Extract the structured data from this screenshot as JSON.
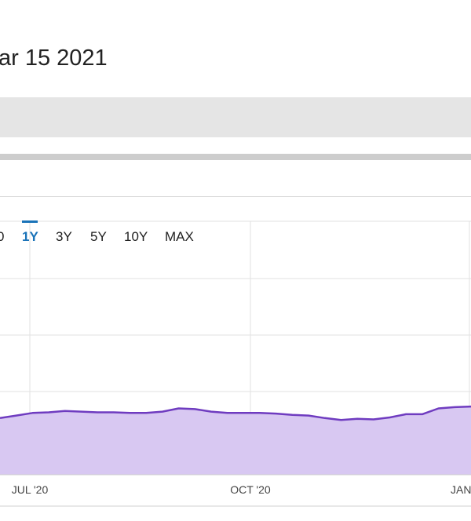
{
  "header": {
    "date_label": "ar 15 2021"
  },
  "range_selector": {
    "buttons": [
      {
        "key": "6m",
        "label": "0",
        "active": false
      },
      {
        "key": "1y",
        "label": "1Y",
        "active": true
      },
      {
        "key": "3y",
        "label": "3Y",
        "active": false
      },
      {
        "key": "5y",
        "label": "5Y",
        "active": false
      },
      {
        "key": "10y",
        "label": "10Y",
        "active": false
      },
      {
        "key": "max",
        "label": "MAX",
        "active": false
      }
    ]
  },
  "colors": {
    "line": "#6f3cc0",
    "fill": "#d8c8f2",
    "grid": "#e2e2e2",
    "active_tab": "#1a73b8"
  },
  "chart_data": {
    "type": "area",
    "title": "",
    "xlabel": "",
    "ylabel": "",
    "grid": true,
    "x_ticks": [
      "JUL '20",
      "OCT '20",
      "JAN"
    ],
    "series": [
      {
        "values": [
          88,
          92,
          96,
          97,
          99,
          98,
          97,
          97,
          96,
          96,
          98,
          103,
          102,
          98,
          96,
          96,
          96,
          95,
          93,
          92,
          88,
          85,
          87,
          86,
          89,
          94,
          94,
          103,
          105,
          106
        ]
      }
    ]
  }
}
